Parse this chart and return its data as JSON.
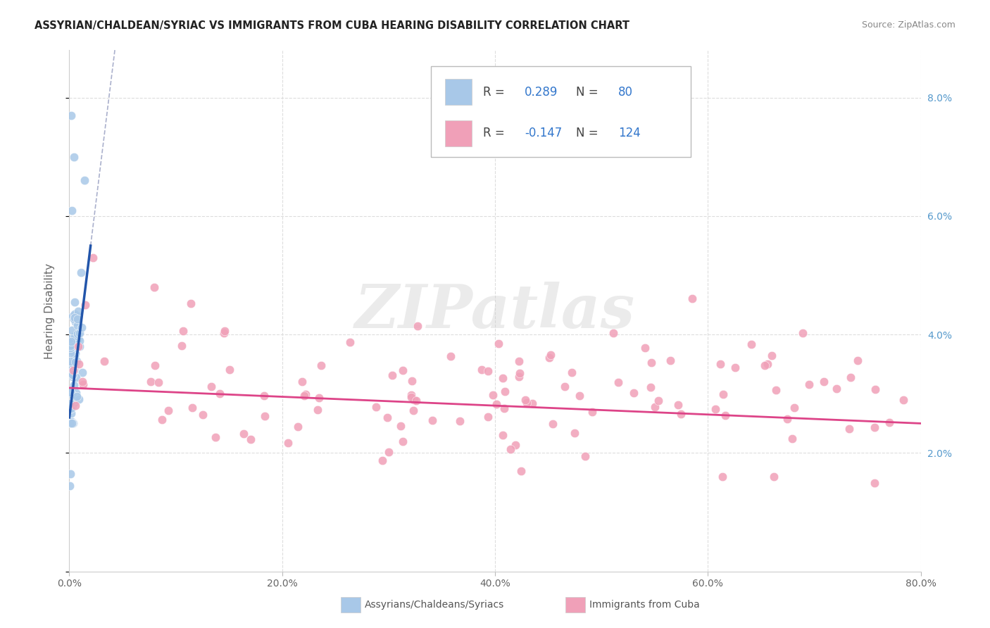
{
  "title": "ASSYRIAN/CHALDEAN/SYRIAC VS IMMIGRANTS FROM CUBA HEARING DISABILITY CORRELATION CHART",
  "source": "Source: ZipAtlas.com",
  "ylabel": "Hearing Disability",
  "r_blue": 0.289,
  "n_blue": 80,
  "r_pink": -0.147,
  "n_pink": 124,
  "blue_color": "#a8c8e8",
  "pink_color": "#f0a0b8",
  "blue_line_color": "#2255aa",
  "pink_line_color": "#dd4488",
  "dashed_line_color": "#aab0cc",
  "watermark": "ZIPatlas",
  "xlim": [
    0,
    80
  ],
  "ylim": [
    0.0,
    8.8
  ],
  "x_ticks": [
    0,
    20,
    40,
    60,
    80
  ],
  "y_ticks": [
    0,
    2,
    4,
    6,
    8
  ],
  "right_y_labels": [
    "",
    "2.0%",
    "4.0%",
    "6.0%",
    "8.0%"
  ],
  "x_labels": [
    "0.0%",
    "20.0%",
    "40.0%",
    "60.0%",
    "80.0%"
  ],
  "bottom_label_blue": "Assyrians/Chaldeans/Syriacs",
  "bottom_label_pink": "Immigrants from Cuba",
  "text_dark": "#444444",
  "text_blue_val": "#3377cc",
  "grid_color": "#dddddd",
  "spine_color": "#cccccc",
  "blue_line_x0": 0.0,
  "blue_line_y0": 2.6,
  "blue_line_x1": 2.0,
  "blue_line_y1": 5.5,
  "blue_dash_x0": 2.0,
  "blue_dash_x1": 80.0,
  "pink_line_y0": 3.1,
  "pink_line_y1": 2.5
}
